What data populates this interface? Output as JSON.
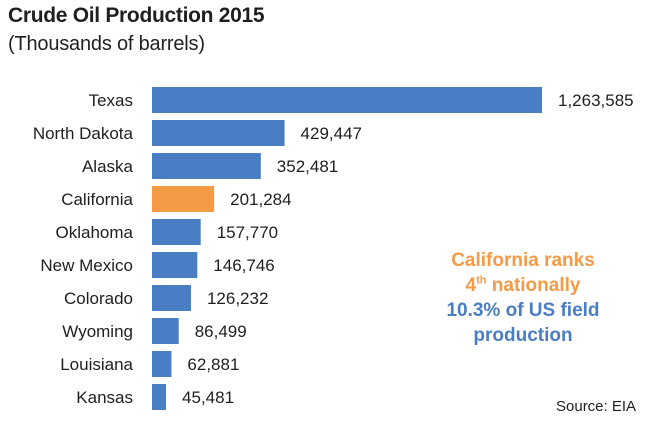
{
  "chart_data": {
    "type": "bar",
    "orientation": "horizontal",
    "title": "Crude Oil Production 2015",
    "subtitle": "(Thousands of barrels)",
    "categories": [
      "Texas",
      "North Dakota",
      "Alaska",
      "California",
      "Oklahoma",
      "New Mexico",
      "Colorado",
      "Wyoming",
      "Louisiana",
      "Kansas"
    ],
    "values": [
      1263585,
      429447,
      352481,
      201284,
      157770,
      146746,
      126232,
      86499,
      62881,
      45481
    ],
    "value_labels": [
      "1,263,585",
      "429,447",
      "352,481",
      "201,284",
      "157,770",
      "146,746",
      "126,232",
      "86,499",
      "62,881",
      "45,481"
    ],
    "highlight_category": "California",
    "xlabel": "",
    "ylabel": "",
    "grid": false,
    "legend": false
  },
  "colors": {
    "bar": "#4a7ec4",
    "highlight": "#f59a45"
  },
  "annotation": {
    "line1": "California ranks",
    "line2_main": "4",
    "line2_sup": "th",
    "line2_rest": " nationally",
    "line3": "10.3% of US field",
    "line4": "production"
  },
  "source": "Source: EIA"
}
